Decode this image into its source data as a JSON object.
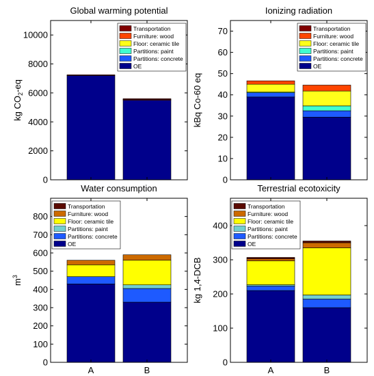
{
  "chart_data": [
    {
      "type": "bar",
      "stacked": true,
      "title": "Global warming potential",
      "ylabel_parts": [
        "kg CO",
        "2",
        "-eq"
      ],
      "categories": [
        "A",
        "B"
      ],
      "show_xticklabels": false,
      "ylim": [
        0,
        11000
      ],
      "yticks": [
        0,
        2000,
        4000,
        6000,
        8000,
        10000
      ],
      "legend_position": "top-right",
      "series": [
        {
          "name": "OE",
          "color": "#00008b",
          "values": [
            7200,
            5500
          ]
        },
        {
          "name": "Partitions: concrete",
          "color": "#1e5aff",
          "values": [
            0,
            0
          ]
        },
        {
          "name": "Partitions: paint",
          "color": "#40ffd0",
          "values": [
            0,
            0
          ]
        },
        {
          "name": "Floor: ceramic tile",
          "color": "#ffff1a",
          "values": [
            0,
            0
          ]
        },
        {
          "name": "Furniture: wood",
          "color": "#ff4500",
          "values": [
            0,
            40
          ]
        },
        {
          "name": "Transportation",
          "color": "#800000",
          "values": [
            50,
            60
          ]
        }
      ]
    },
    {
      "type": "bar",
      "stacked": true,
      "title": "Ionizing radiation",
      "ylabel": "kBq Co-60 eq",
      "categories": [
        "A",
        "B"
      ],
      "show_xticklabels": false,
      "ylim": [
        0,
        75
      ],
      "yticks": [
        0,
        10,
        20,
        30,
        40,
        50,
        60,
        70
      ],
      "legend_position": "top-right",
      "series": [
        {
          "name": "OE",
          "color": "#00008b",
          "values": [
            39.0,
            29.5
          ]
        },
        {
          "name": "Partitions: concrete",
          "color": "#1e5aff",
          "values": [
            2.0,
            3.0
          ]
        },
        {
          "name": "Partitions: paint",
          "color": "#40ffd0",
          "values": [
            0.3,
            2.3
          ]
        },
        {
          "name": "Floor: ceramic tile",
          "color": "#ffff1a",
          "values": [
            3.7,
            7.0
          ]
        },
        {
          "name": "Furniture: wood",
          "color": "#ff4500",
          "values": [
            1.6,
            2.8
          ]
        },
        {
          "name": "Transportation",
          "color": "#800000",
          "values": [
            0,
            0
          ]
        }
      ]
    },
    {
      "type": "bar",
      "stacked": true,
      "title": "Water consumption",
      "ylabel": "m",
      "ylabel_superscript": "3",
      "categories": [
        "A",
        "B"
      ],
      "show_xticklabels": true,
      "ylim": [
        0,
        900
      ],
      "yticks": [
        0,
        100,
        200,
        300,
        400,
        500,
        600,
        700,
        800
      ],
      "legend_position": "top-left",
      "series": [
        {
          "name": "OE",
          "color": "#00008b",
          "values": [
            430,
            330
          ]
        },
        {
          "name": "Partitions: concrete",
          "color": "#1e5aff",
          "values": [
            40,
            75
          ]
        },
        {
          "name": "Partitions: paint",
          "color": "#73cfcf",
          "values": [
            0,
            20
          ]
        },
        {
          "name": "Floor: ceramic tile",
          "color": "#ffff00",
          "values": [
            65,
            135
          ]
        },
        {
          "name": "Furniture: wood",
          "color": "#cc6a00",
          "values": [
            25,
            30
          ]
        },
        {
          "name": "Transportation",
          "color": "#5a0a00",
          "values": [
            0,
            0
          ]
        }
      ]
    },
    {
      "type": "bar",
      "stacked": true,
      "title": "Terrestrial ecotoxicity",
      "ylabel": "kg 1,4-DCB",
      "categories": [
        "A",
        "B"
      ],
      "show_xticklabels": true,
      "ylim": [
        0,
        480
      ],
      "yticks": [
        0,
        100,
        200,
        300,
        400
      ],
      "legend_position": "top-left",
      "series": [
        {
          "name": "OE",
          "color": "#00008b",
          "values": [
            210,
            160
          ]
        },
        {
          "name": "Partitions: concrete",
          "color": "#1e5aff",
          "values": [
            13,
            25
          ]
        },
        {
          "name": "Partitions: paint",
          "color": "#73cfcf",
          "values": [
            4,
            12
          ]
        },
        {
          "name": "Floor: ceramic tile",
          "color": "#ffff00",
          "values": [
            70,
            138
          ]
        },
        {
          "name": "Furniture: wood",
          "color": "#cc6a00",
          "values": [
            6,
            15
          ]
        },
        {
          "name": "Transportation",
          "color": "#5a0a00",
          "values": [
            4,
            5
          ]
        }
      ]
    }
  ]
}
